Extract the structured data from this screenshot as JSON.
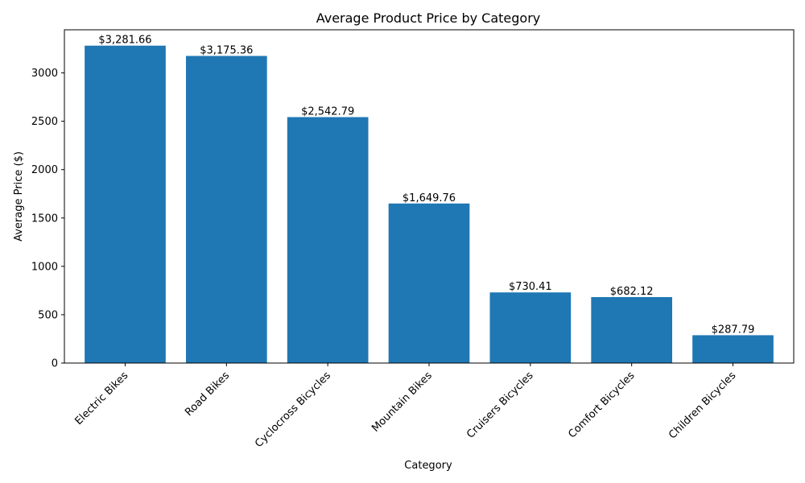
{
  "chart_data": {
    "type": "bar",
    "title": "Average Product Price by Category",
    "xlabel": "Category",
    "ylabel": "Average Price ($)",
    "categories": [
      "Electric Bikes",
      "Road Bikes",
      "Cyclocross Bicycles",
      "Mountain Bikes",
      "Cruisers Bicycles",
      "Comfort Bicycles",
      "Children Bicycles"
    ],
    "values": [
      3281.66,
      3175.36,
      2542.79,
      1649.76,
      730.41,
      682.12,
      287.79
    ],
    "data_labels": [
      "$3,281.66",
      "$3,175.36",
      "$2,542.79",
      "$1,649.76",
      "$730.41",
      "$682.12",
      "$287.79"
    ],
    "yticks": [
      0,
      500,
      1000,
      1500,
      2000,
      2500,
      3000
    ],
    "ytick_labels": [
      "0",
      "500",
      "1000",
      "1500",
      "2000",
      "2500",
      "3000"
    ],
    "ylim": [
      0,
      3445.74
    ],
    "bar_color": "#1f77b4",
    "grid": false,
    "legend": false
  }
}
